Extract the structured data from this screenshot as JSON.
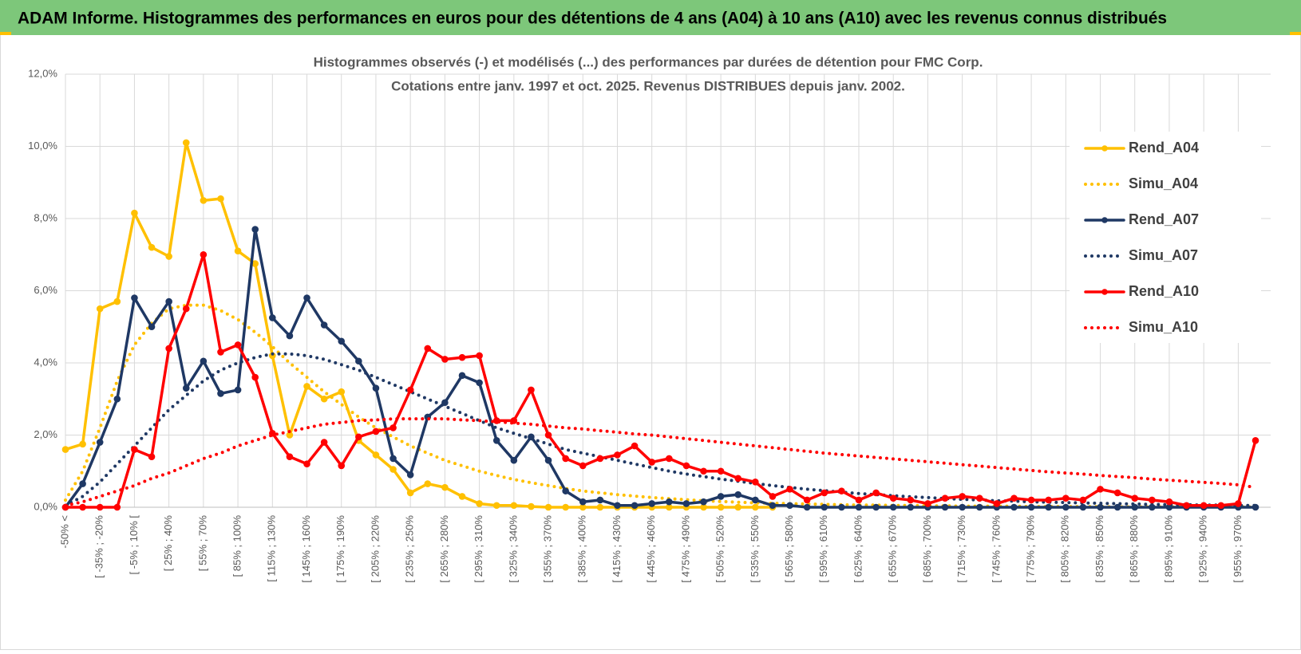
{
  "header": {
    "title": "ADAM Informe. Histogrammes des performances en euros pour des détentions de 4 ans (A04) à 10 ans (A10) avec les revenus connus distribués"
  },
  "chart_data": {
    "type": "line",
    "title": "Histogrammes observés (-) et modélisés (...) des performances par durées de détention pour FMC Corp.",
    "subtitle": "Cotations entre janv. 1997 et oct. 2025.  Revenus DISTRIBUES depuis janv. 2002.",
    "categories": [
      "-50% <",
      null,
      "[ -35% ; -20%",
      null,
      "[ -5% ; 10% [",
      null,
      "[ 25% ; 40%",
      null,
      "[ 55% ; 70%",
      null,
      "[ 85% ; 100%",
      null,
      "[ 115% ; 130%",
      null,
      "[ 145% ; 160%",
      null,
      "[ 175% ; 190%",
      null,
      "[ 205% ; 220%",
      null,
      "[ 235% ; 250%",
      null,
      "[ 265% ; 280%",
      null,
      "[ 295% ; 310%",
      null,
      "[ 325% ; 340%",
      null,
      "[ 355% ; 370%",
      null,
      "[ 385% ; 400%",
      null,
      "[ 415% ; 430%",
      null,
      "[ 445% ; 460%",
      null,
      "[ 475% ; 490%",
      null,
      "[ 505% ; 520%",
      null,
      "[ 535% ; 550%",
      null,
      "[ 565% ; 580%",
      null,
      "[ 595% ; 610%",
      null,
      "[ 625% ; 640%",
      null,
      "[ 655% ; 670%",
      null,
      "[ 685% ; 700%",
      null,
      "[ 715% ; 730%",
      null,
      "[ 745% ; 760%",
      null,
      "[ 775% ; 790%",
      null,
      "[ 805% ; 820%",
      null,
      "[ 835% ; 850%",
      null,
      "[ 865% ; 880%",
      null,
      "[ 895% ; 910%",
      null,
      "[ 925% ; 940%",
      null,
      "[ 955% ; 970%",
      null
    ],
    "ylim": [
      0,
      12
    ],
    "yticks": [
      {
        "value": 0,
        "label": "0,0%"
      },
      {
        "value": 2,
        "label": "2,0%"
      },
      {
        "value": 4,
        "label": "4,0%"
      },
      {
        "value": 6,
        "label": "6,0%"
      },
      {
        "value": 8,
        "label": "8,0%"
      },
      {
        "value": 10,
        "label": "10,0%"
      },
      {
        "value": 12,
        "label": "12,0%"
      }
    ],
    "grid": true,
    "legend": "right",
    "series": [
      {
        "name": "Rend_A04",
        "color": "#FFC000",
        "line_style": "solid",
        "markers": true,
        "values": [
          1.6,
          1.75,
          5.5,
          5.7,
          8.15,
          7.2,
          6.95,
          10.1,
          8.5,
          8.55,
          7.1,
          6.75,
          4.2,
          2.0,
          3.35,
          3.0,
          3.2,
          1.85,
          1.45,
          1.05,
          0.4,
          0.65,
          0.55,
          0.3,
          0.1,
          0.05,
          0.05,
          0.02,
          0,
          0,
          0,
          0,
          0,
          0,
          0,
          0,
          0,
          0,
          0,
          0,
          0,
          0,
          null,
          null,
          null,
          null,
          null,
          null,
          null,
          null,
          null,
          null,
          null,
          null,
          null,
          null,
          null,
          null,
          null,
          null,
          null,
          null,
          null,
          null,
          null,
          null,
          null,
          null,
          null,
          null
        ]
      },
      {
        "name": "Simu_A04",
        "color": "#FFC000",
        "line_style": "dotted",
        "markers": false,
        "values": [
          0.2,
          1.0,
          2.2,
          3.5,
          4.5,
          5.1,
          5.5,
          5.6,
          5.6,
          5.45,
          5.2,
          4.85,
          4.45,
          4.0,
          3.6,
          3.2,
          2.85,
          2.5,
          2.2,
          1.95,
          1.7,
          1.5,
          1.3,
          1.15,
          1.0,
          0.88,
          0.77,
          0.68,
          0.6,
          0.52,
          0.45,
          0.4,
          0.35,
          0.31,
          0.27,
          0.24,
          0.21,
          0.18,
          0.16,
          0.14,
          0.12,
          0.11,
          0.1,
          0.09,
          0.08,
          0.07,
          0.06,
          0.06,
          0.05,
          0.05,
          0.04,
          0.04,
          0.03,
          0.03,
          0.03,
          0.03,
          0.02,
          0.02,
          0.02,
          0.02,
          0.02,
          0.01,
          0.01,
          0.01,
          0.01,
          0.01,
          0.01,
          0.01,
          0.01,
          0.01
        ]
      },
      {
        "name": "Rend_A07",
        "color": "#1F3864",
        "line_style": "solid",
        "markers": true,
        "values": [
          0,
          0.65,
          1.8,
          3.0,
          5.8,
          5.0,
          5.7,
          3.3,
          4.05,
          3.15,
          3.25,
          7.7,
          5.25,
          4.75,
          5.8,
          5.05,
          4.6,
          4.05,
          3.3,
          1.35,
          0.9,
          2.5,
          2.9,
          3.65,
          3.45,
          1.85,
          1.3,
          1.95,
          1.3,
          0.45,
          0.15,
          0.2,
          0.05,
          0.05,
          0.1,
          0.15,
          0.1,
          0.15,
          0.3,
          0.35,
          0.2,
          0.05,
          0.05,
          0,
          0,
          0,
          0,
          0,
          0,
          0,
          0,
          0,
          0,
          0,
          0,
          0,
          0,
          0,
          0,
          0,
          0,
          0,
          0,
          0,
          0,
          0,
          0,
          0,
          0,
          0
        ]
      },
      {
        "name": "Simu_A07",
        "color": "#1F3864",
        "line_style": "dotted",
        "markers": false,
        "values": [
          0.05,
          0.3,
          0.7,
          1.2,
          1.7,
          2.2,
          2.7,
          3.1,
          3.5,
          3.8,
          4.0,
          4.15,
          4.25,
          4.25,
          4.2,
          4.1,
          3.95,
          3.8,
          3.6,
          3.4,
          3.2,
          3.0,
          2.8,
          2.6,
          2.4,
          2.2,
          2.05,
          1.9,
          1.75,
          1.6,
          1.5,
          1.4,
          1.3,
          1.2,
          1.1,
          1.0,
          0.92,
          0.85,
          0.78,
          0.72,
          0.66,
          0.6,
          0.55,
          0.5,
          0.46,
          0.42,
          0.38,
          0.35,
          0.32,
          0.29,
          0.27,
          0.24,
          0.22,
          0.2,
          0.18,
          0.17,
          0.15,
          0.14,
          0.13,
          0.12,
          0.11,
          0.1,
          0.09,
          0.08,
          0.07,
          0.07,
          0.06,
          0.06,
          0.05,
          0.05
        ]
      },
      {
        "name": "Rend_A10",
        "color": "#FF0000",
        "line_style": "solid",
        "markers": true,
        "values": [
          0,
          0,
          0,
          0,
          1.6,
          1.4,
          4.4,
          5.5,
          7.0,
          4.3,
          4.5,
          3.6,
          2.05,
          1.4,
          1.2,
          1.8,
          1.15,
          1.95,
          2.1,
          2.2,
          3.25,
          4.4,
          4.1,
          4.15,
          4.2,
          2.4,
          2.4,
          3.25,
          2.0,
          1.35,
          1.15,
          1.35,
          1.45,
          1.7,
          1.25,
          1.35,
          1.15,
          1.0,
          1.0,
          0.8,
          0.7,
          0.3,
          0.5,
          0.2,
          0.4,
          0.45,
          0.2,
          0.4,
          0.25,
          0.2,
          0.1,
          0.25,
          0.3,
          0.25,
          0.1,
          0.25,
          0.2,
          0.2,
          0.25,
          0.2,
          0.5,
          0.4,
          0.25,
          0.2,
          0.15,
          0.05,
          0.05,
          0.05,
          0.1,
          1.85
        ]
      },
      {
        "name": "Simu_A10",
        "color": "#FF0000",
        "line_style": "dotted",
        "markers": false,
        "values": [
          0.05,
          0.15,
          0.3,
          0.45,
          0.6,
          0.8,
          0.95,
          1.15,
          1.35,
          1.5,
          1.7,
          1.85,
          2.0,
          2.1,
          2.2,
          2.3,
          2.35,
          2.4,
          2.42,
          2.45,
          2.45,
          2.45,
          2.45,
          2.42,
          2.4,
          2.37,
          2.33,
          2.3,
          2.25,
          2.2,
          2.17,
          2.12,
          2.08,
          2.03,
          2.0,
          1.95,
          1.9,
          1.85,
          1.8,
          1.75,
          1.7,
          1.65,
          1.6,
          1.55,
          1.5,
          1.46,
          1.42,
          1.38,
          1.34,
          1.3,
          1.26,
          1.22,
          1.18,
          1.14,
          1.1,
          1.06,
          1.02,
          0.98,
          0.95,
          0.92,
          0.88,
          0.85,
          0.82,
          0.78,
          0.75,
          0.72,
          0.69,
          0.66,
          0.62,
          0.55
        ]
      }
    ]
  }
}
